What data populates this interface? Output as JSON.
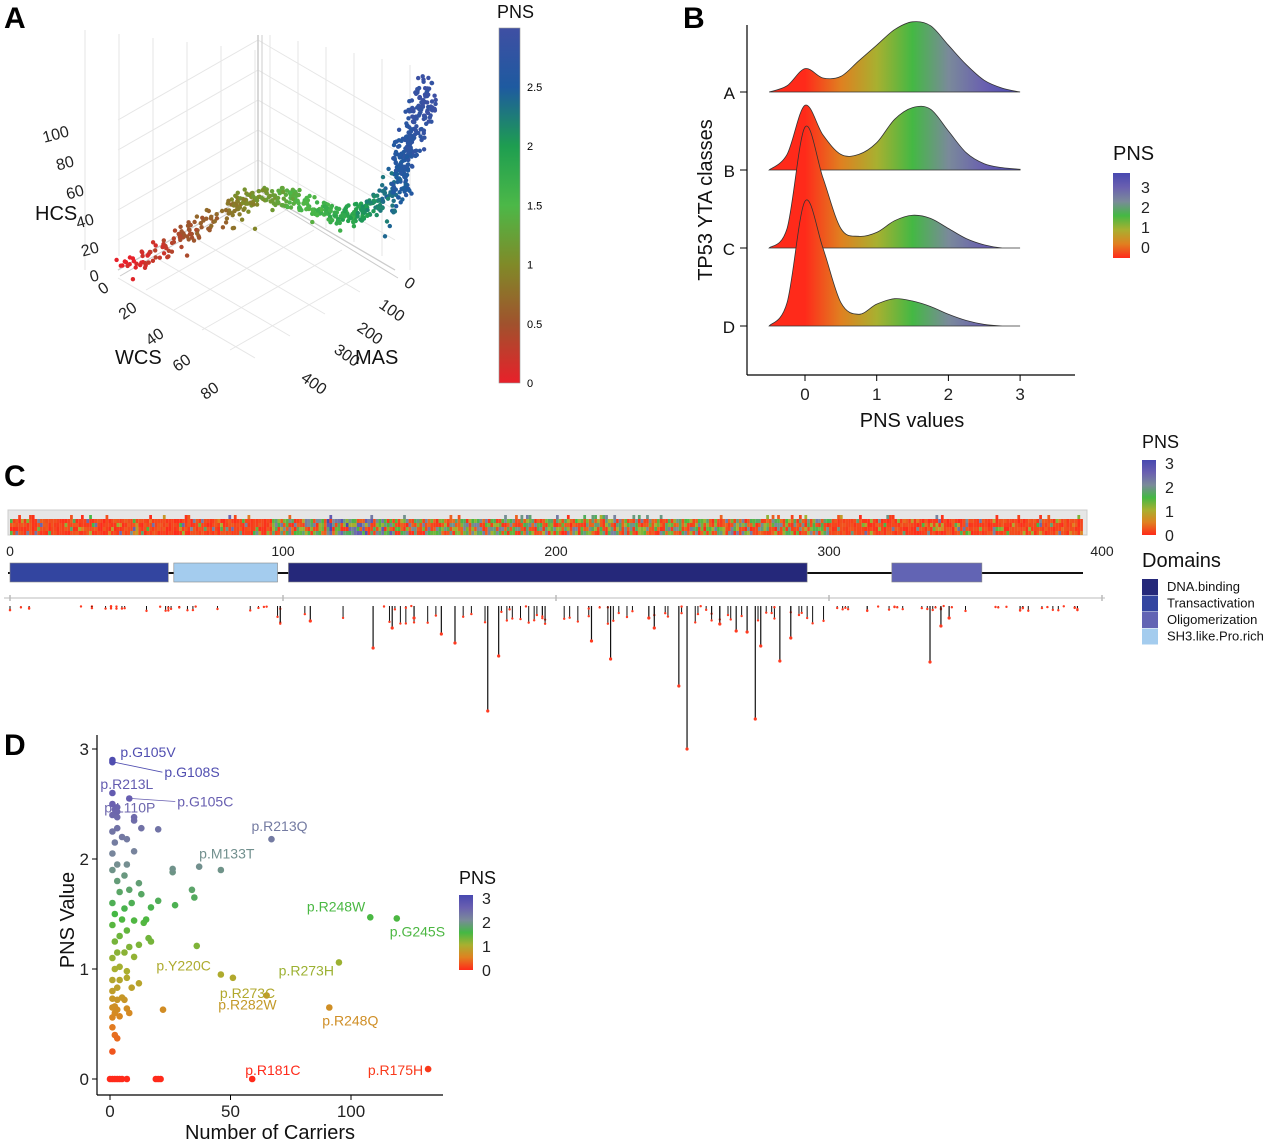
{
  "colors": {
    "pns_scale_A": [
      [
        0,
        "#e8202a"
      ],
      [
        0.5,
        "#a0522d"
      ],
      [
        1,
        "#808a28"
      ],
      [
        1.5,
        "#4cb848"
      ],
      [
        2,
        "#1e9e50"
      ],
      [
        2.5,
        "#1e5aa0"
      ],
      [
        3,
        "#3f4fa3"
      ]
    ],
    "pns_scale": [
      [
        0,
        "#ff2a1a"
      ],
      [
        0.5,
        "#e08020"
      ],
      [
        1,
        "#a8b030"
      ],
      [
        1.5,
        "#44b844"
      ],
      [
        2,
        "#7a8a9a"
      ],
      [
        2.5,
        "#6a60b0"
      ],
      [
        3,
        "#4848b0"
      ]
    ],
    "domains": {
      "DNA.binding": "#25287a",
      "Transactivation": "#3345a0",
      "Oligomerization": "#6264b4",
      "SH3.like.Pro.rich": "#a4ccee"
    }
  },
  "panels": {
    "a": "A",
    "b": "B",
    "c": "C",
    "d": "D"
  },
  "chart_data": [
    {
      "panel": "A",
      "type": "scatter",
      "projection": "3d",
      "axes": {
        "x": {
          "label": "MAS",
          "ticks": [
            "0",
            "100",
            "200",
            "300",
            "400"
          ]
        },
        "y": {
          "label": "WCS",
          "ticks": [
            "0",
            "20",
            "40",
            "60",
            "80"
          ]
        },
        "z": {
          "label": "HCS",
          "ticks": [
            "0",
            "20",
            "40",
            "60",
            "80",
            "100"
          ]
        }
      },
      "colorbar": {
        "title": "PNS",
        "ticks": [
          "0",
          "0.5",
          "1",
          "1.5",
          "2",
          "2.5"
        ]
      },
      "grid": true
    },
    {
      "panel": "B",
      "type": "area",
      "subtype": "ridgeline",
      "xlabel": "PNS values",
      "ylabel": "TP53 YTA classes",
      "xticks": [
        "0",
        "1",
        "2",
        "3"
      ],
      "xlim": [
        -0.5,
        3.1
      ],
      "x": [
        -0.5,
        -0.25,
        0,
        0.25,
        0.5,
        0.75,
        1,
        1.25,
        1.5,
        1.75,
        2,
        2.25,
        2.5,
        2.75,
        3
      ],
      "series": [
        {
          "name": "A",
          "values": [
            0,
            0.08,
            0.3,
            0.18,
            0.2,
            0.4,
            0.6,
            0.8,
            0.9,
            0.85,
            0.6,
            0.35,
            0.15,
            0.05,
            0
          ]
        },
        {
          "name": "B",
          "values": [
            0,
            0.2,
            0.83,
            0.45,
            0.2,
            0.2,
            0.35,
            0.65,
            0.8,
            0.78,
            0.5,
            0.22,
            0.08,
            0.03,
            0.01
          ]
        },
        {
          "name": "C",
          "values": [
            0,
            0.25,
            1.55,
            0.9,
            0.25,
            0.15,
            0.2,
            0.35,
            0.42,
            0.38,
            0.25,
            0.12,
            0.04,
            0,
            0
          ]
        },
        {
          "name": "D",
          "values": [
            0,
            0.3,
            1.6,
            1.0,
            0.3,
            0.15,
            0.28,
            0.35,
            0.32,
            0.25,
            0.15,
            0.07,
            0.02,
            0,
            0
          ]
        }
      ],
      "legend": {
        "title": "PNS",
        "ticks": [
          "3",
          "2",
          "1",
          "0"
        ],
        "placement": "right"
      }
    },
    {
      "panel": "C",
      "type": "heatmap",
      "subtype": "lollipop-protein-map",
      "xticks": [
        "0",
        "100",
        "200",
        "300",
        "400"
      ],
      "xlim": [
        0,
        400
      ],
      "protein_length": 393,
      "domains": [
        {
          "name": "Transactivation",
          "start": 0,
          "end": 58
        },
        {
          "name": "SH3.like.Pro.rich",
          "start": 60,
          "end": 98
        },
        {
          "name": "DNA.binding",
          "start": 102,
          "end": 292
        },
        {
          "name": "Oligomerization",
          "start": 323,
          "end": 356
        }
      ],
      "lollipops": [
        {
          "pos": 133,
          "count": 42
        },
        {
          "pos": 140,
          "count": 22
        },
        {
          "pos": 148,
          "count": 12
        },
        {
          "pos": 158,
          "count": 28
        },
        {
          "pos": 163,
          "count": 37
        },
        {
          "pos": 175,
          "count": 105
        },
        {
          "pos": 179,
          "count": 50
        },
        {
          "pos": 213,
          "count": 35
        },
        {
          "pos": 220,
          "count": 53
        },
        {
          "pos": 236,
          "count": 22
        },
        {
          "pos": 245,
          "count": 80
        },
        {
          "pos": 248,
          "count": 143
        },
        {
          "pos": 266,
          "count": 25
        },
        {
          "pos": 273,
          "count": 113
        },
        {
          "pos": 275,
          "count": 40
        },
        {
          "pos": 282,
          "count": 55
        },
        {
          "pos": 286,
          "count": 32
        },
        {
          "pos": 337,
          "count": 56
        },
        {
          "pos": 341,
          "count": 20
        },
        {
          "pos": 344,
          "count": 12
        },
        {
          "pos": 110,
          "count": 15
        },
        {
          "pos": 234,
          "count": 12
        },
        {
          "pos": 260,
          "count": 18
        },
        {
          "pos": 270,
          "count": 26
        }
      ],
      "legend": {
        "pns_title": "PNS",
        "pns_ticks": [
          "3",
          "2",
          "1",
          "0"
        ],
        "domains_title": "Domains",
        "domains": [
          "DNA.binding",
          "Transactivation",
          "Oligomerization",
          "SH3.like.Pro.rich"
        ]
      }
    },
    {
      "panel": "D",
      "type": "scatter",
      "xlabel": "Number of Carriers",
      "ylabel": "PNS Value",
      "xticks": [
        "0",
        "50",
        "100"
      ],
      "yticks": [
        "0",
        "1",
        "2",
        "3"
      ],
      "xlim": [
        -5,
        138
      ],
      "ylim": [
        -0.15,
        3.05
      ],
      "labeled_points": [
        {
          "label": "p.G105V",
          "x": 1,
          "y": 2.9
        },
        {
          "label": "p.G108S",
          "x": 1,
          "y": 2.88
        },
        {
          "label": "p.R213L",
          "x": 1,
          "y": 2.6
        },
        {
          "label": "p.G105C",
          "x": 8,
          "y": 2.55
        },
        {
          "label": "p.L110P",
          "x": 3,
          "y": 2.43
        },
        {
          "label": "p.R213Q",
          "x": 67,
          "y": 2.18
        },
        {
          "label": "p.M133T",
          "x": 37,
          "y": 1.93
        },
        {
          "label": "p.R248W",
          "x": 108,
          "y": 1.47
        },
        {
          "label": "p.G245S",
          "x": 119,
          "y": 1.46
        },
        {
          "label": "p.Y220C",
          "x": 46,
          "y": 0.95
        },
        {
          "label": "p.R273C",
          "x": 51,
          "y": 0.92
        },
        {
          "label": "p.R273H",
          "x": 95,
          "y": 1.06
        },
        {
          "label": "p.R282W",
          "x": 65,
          "y": 0.76
        },
        {
          "label": "p.R248Q",
          "x": 91,
          "y": 0.65
        },
        {
          "label": "p.R181C",
          "x": 59,
          "y": 0
        },
        {
          "label": "p.R175H",
          "x": 132,
          "y": 0.09
        }
      ],
      "points": [
        [
          1,
          0.25
        ],
        [
          1,
          0.47
        ],
        [
          2,
          0.4
        ],
        [
          3,
          0.37
        ],
        [
          1,
          0.56
        ],
        [
          2,
          0.6
        ],
        [
          4,
          0.57
        ],
        [
          1,
          0.65
        ],
        [
          2,
          0.66
        ],
        [
          3,
          0.63
        ],
        [
          5,
          0.74
        ],
        [
          7,
          0.64
        ],
        [
          8,
          0.6
        ],
        [
          1,
          0.73
        ],
        [
          3,
          0.72
        ],
        [
          6,
          0.72
        ],
        [
          1,
          0.8
        ],
        [
          3,
          0.83
        ],
        [
          9,
          0.83
        ],
        [
          12,
          0.87
        ],
        [
          1,
          0.9
        ],
        [
          4,
          0.9
        ],
        [
          7,
          0.92
        ],
        [
          2,
          1.0
        ],
        [
          4,
          1.02
        ],
        [
          7,
          0.98
        ],
        [
          10,
          1.11
        ],
        [
          1,
          1.1
        ],
        [
          3,
          1.15
        ],
        [
          6,
          1.15
        ],
        [
          8,
          1.2
        ],
        [
          12,
          1.22
        ],
        [
          17,
          1.25
        ],
        [
          16,
          1.28
        ],
        [
          2,
          1.25
        ],
        [
          4,
          1.3
        ],
        [
          7,
          1.35
        ],
        [
          1,
          1.4
        ],
        [
          5,
          1.45
        ],
        [
          10,
          1.44
        ],
        [
          14,
          1.42
        ],
        [
          15,
          1.45
        ],
        [
          2,
          1.5
        ],
        [
          6,
          1.55
        ],
        [
          9,
          1.6
        ],
        [
          17,
          1.56
        ],
        [
          20,
          1.62
        ],
        [
          27,
          1.58
        ],
        [
          35,
          1.65
        ],
        [
          34,
          1.72
        ],
        [
          1,
          1.6
        ],
        [
          4,
          1.7
        ],
        [
          8,
          1.72
        ],
        [
          13,
          1.68
        ],
        [
          12,
          1.78
        ],
        [
          3,
          1.8
        ],
        [
          6,
          1.85
        ],
        [
          1,
          1.9
        ],
        [
          3,
          1.95
        ],
        [
          7,
          1.95
        ],
        [
          26,
          1.88
        ],
        [
          26,
          1.91
        ],
        [
          1,
          2.05
        ],
        [
          10,
          2.07
        ],
        [
          2,
          2.15
        ],
        [
          5,
          2.2
        ],
        [
          7,
          2.18
        ],
        [
          1,
          2.25
        ],
        [
          3,
          2.28
        ],
        [
          13,
          2.28
        ],
        [
          20,
          2.27
        ],
        [
          10,
          2.35
        ],
        [
          10,
          2.38
        ],
        [
          1,
          2.4
        ],
        [
          3,
          2.38
        ],
        [
          2,
          2.45
        ],
        [
          3,
          2.47
        ],
        [
          1,
          2.5
        ],
        [
          0,
          0
        ],
        [
          1,
          0
        ],
        [
          2,
          0
        ],
        [
          3,
          0
        ],
        [
          4,
          0
        ],
        [
          5,
          0
        ],
        [
          7,
          0
        ],
        [
          19,
          0
        ],
        [
          20,
          0
        ],
        [
          21,
          0
        ],
        [
          22,
          0.63
        ],
        [
          36,
          1.21
        ],
        [
          46,
          1.9
        ]
      ],
      "legend": {
        "title": "PNS",
        "ticks": [
          "3",
          "2",
          "1",
          "0"
        ],
        "placement": "right"
      }
    }
  ]
}
